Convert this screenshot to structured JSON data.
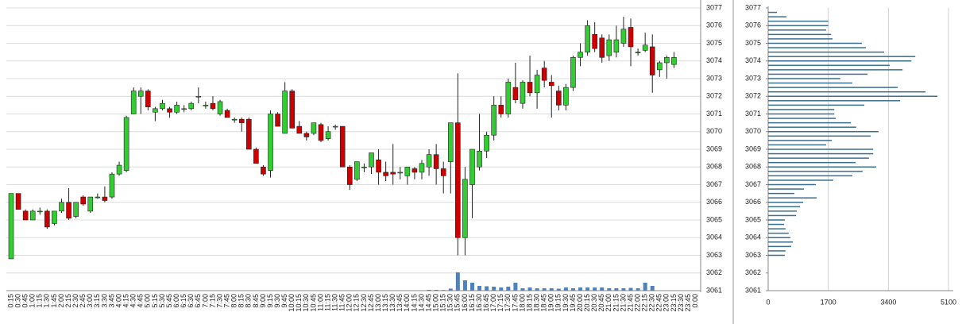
{
  "chart_data": [
    {
      "type": "candlestick",
      "categories": [
        "0:15",
        "0:30",
        "0:45",
        "1:00",
        "1:15",
        "1:30",
        "1:45",
        "2:00",
        "2:15",
        "2:30",
        "2:45",
        "3:00",
        "3:15",
        "3:30",
        "3:45",
        "4:00",
        "4:15",
        "4:30",
        "4:45",
        "5:00",
        "5:15",
        "5:30",
        "5:45",
        "6:00",
        "6:15",
        "6:30",
        "6:45",
        "7:00",
        "7:15",
        "7:30",
        "7:45",
        "8:00",
        "8:15",
        "8:30",
        "8:45",
        "9:00",
        "9:15",
        "9:30",
        "9:45",
        "10:00",
        "10:15",
        "10:30",
        "10:45",
        "11:00",
        "11:15",
        "11:30",
        "11:45",
        "12:00",
        "12:15",
        "12:30",
        "12:45",
        "13:00",
        "13:15",
        "13:30",
        "13:45",
        "14:00",
        "14:15",
        "14:30",
        "14:45",
        "15:00",
        "15:15",
        "15:30",
        "15:45",
        "16:00",
        "16:15",
        "16:30",
        "16:45",
        "17:00",
        "17:15",
        "17:30",
        "17:45",
        "18:00",
        "18:15",
        "18:30",
        "18:45",
        "19:00",
        "19:15",
        "19:30",
        "19:45",
        "20:00",
        "20:15",
        "20:30",
        "20:45",
        "21:00",
        "21:15",
        "21:30",
        "21:45",
        "22:00",
        "22:15",
        "22:30",
        "22:45",
        "23:00",
        "23:15",
        "23:30",
        "23:45",
        "0:00"
      ],
      "open": [
        3062.8,
        3066.5,
        3065.5,
        3065.0,
        3065.5,
        3065.5,
        3064.8,
        3065.5,
        3066.0,
        3065.2,
        3066.3,
        3065.5,
        3066.3,
        3066.3,
        3066.3,
        3067.6,
        3067.8,
        3071.0,
        3072.0,
        3072.3,
        3071.1,
        3071.3,
        3071.3,
        3071.1,
        3071.3,
        3071.3,
        3072.0,
        3071.5,
        3071.6,
        3071.0,
        3071.2,
        3070.7,
        3070.7,
        3070.7,
        3069.0,
        3068.0,
        3067.8,
        3071.0,
        3069.9,
        3072.3,
        3070.3,
        3069.9,
        3069.9,
        3070.4,
        3069.6,
        3070.3,
        3070.3,
        3068.0,
        3067.3,
        3068.0,
        3068.0,
        3068.4,
        3067.7,
        3067.7,
        3067.7,
        3067.5,
        3067.9,
        3067.7,
        3068.0,
        3068.7,
        3067.9,
        3068.3,
        3070.5,
        3064.0,
        3067.0,
        3068.0,
        3068.9,
        3069.8,
        3071.5,
        3071.0,
        3072.5,
        3071.6,
        3072.8,
        3072.2,
        3073.6,
        3072.8,
        3072.3,
        3071.5,
        3072.5,
        3074.2,
        3074.5,
        3075.5,
        3075.3,
        3074.3,
        3074.5,
        3075.0,
        3075.9,
        3074.5,
        3074.6,
        3074.8,
        3073.5,
        3073.9,
        3073.8,
        null,
        null,
        null
      ],
      "high": [
        3066.5,
        3066.5,
        3065.6,
        3065.6,
        3065.7,
        3065.6,
        3065.5,
        3066.2,
        3066.8,
        3066.0,
        3066.4,
        3066.3,
        3066.5,
        3066.9,
        3067.7,
        3068.3,
        3070.9,
        3072.5,
        3072.5,
        3072.4,
        3071.4,
        3071.8,
        3071.4,
        3071.7,
        3071.5,
        3071.7,
        3072.5,
        3071.7,
        3072.0,
        3071.8,
        3071.3,
        3070.8,
        3070.8,
        3070.8,
        3069.1,
        3068.1,
        3071.2,
        3071.1,
        3072.8,
        3072.4,
        3070.6,
        3070.0,
        3070.5,
        3070.5,
        3070.3,
        3070.4,
        3070.3,
        3068.1,
        3068.3,
        3068.2,
        3068.8,
        3069.0,
        3068.3,
        3069.3,
        3068.0,
        3068.0,
        3068.0,
        3068.4,
        3069.0,
        3069.3,
        3068.3,
        3070.5,
        3073.3,
        3068.0,
        3069.0,
        3071.0,
        3070.0,
        3072.0,
        3072.0,
        3073.0,
        3073.9,
        3072.9,
        3074.3,
        3073.5,
        3074.0,
        3073.2,
        3072.6,
        3072.7,
        3074.3,
        3075.0,
        3076.3,
        3076.2,
        3075.5,
        3075.5,
        3076.0,
        3076.5,
        3076.4,
        3074.7,
        3075.6,
        3075.5,
        3074.0,
        3074.3,
        3074.5,
        null,
        null,
        null
      ],
      "low": [
        3062.8,
        3065.6,
        3065.0,
        3065.0,
        3065.3,
        3064.5,
        3064.7,
        3065.4,
        3065.0,
        3065.1,
        3065.8,
        3065.4,
        3066.2,
        3066.0,
        3066.2,
        3067.5,
        3067.7,
        3071.0,
        3071.0,
        3071.2,
        3070.6,
        3071.2,
        3070.8,
        3071.0,
        3071.1,
        3071.2,
        3071.6,
        3071.3,
        3071.2,
        3070.9,
        3070.8,
        3070.5,
        3070.0,
        3069.0,
        3068.2,
        3067.5,
        3067.4,
        3070.3,
        3069.9,
        3070.2,
        3069.9,
        3069.5,
        3069.8,
        3069.4,
        3069.5,
        3070.1,
        3068.0,
        3066.7,
        3067.2,
        3067.7,
        3067.6,
        3067.0,
        3067.2,
        3067.0,
        3067.3,
        3067.0,
        3067.3,
        3067.3,
        3067.5,
        3067.0,
        3066.5,
        3066.5,
        3063.0,
        3063.0,
        3065.1,
        3067.8,
        3068.5,
        3069.5,
        3070.8,
        3070.8,
        3071.6,
        3071.3,
        3072.0,
        3071.3,
        3072.5,
        3070.8,
        3071.2,
        3071.2,
        3072.3,
        3073.7,
        3074.3,
        3074.5,
        3073.9,
        3074.0,
        3074.2,
        3074.8,
        3073.7,
        3074.3,
        3074.5,
        3072.2,
        3073.1,
        3073.0,
        3073.6,
        null,
        null,
        null
      ],
      "close": [
        3066.5,
        3065.6,
        3065.0,
        3065.5,
        3065.5,
        3064.6,
        3065.5,
        3066.0,
        3065.1,
        3066.0,
        3065.9,
        3066.3,
        3066.3,
        3066.1,
        3067.6,
        3068.1,
        3070.8,
        3072.3,
        3072.3,
        3071.4,
        3071.3,
        3071.6,
        3071.1,
        3071.5,
        3071.3,
        3071.6,
        3072.0,
        3071.5,
        3071.3,
        3071.7,
        3070.8,
        3070.7,
        3070.5,
        3069.0,
        3068.2,
        3067.6,
        3071.0,
        3070.3,
        3072.3,
        3070.2,
        3069.9,
        3069.7,
        3070.5,
        3069.5,
        3070.0,
        3070.3,
        3068.0,
        3067.0,
        3068.3,
        3068.0,
        3068.8,
        3067.7,
        3067.5,
        3067.6,
        3067.7,
        3068.0,
        3067.7,
        3068.2,
        3068.7,
        3067.9,
        3067.5,
        3070.5,
        3064.0,
        3067.3,
        3069.0,
        3068.9,
        3069.8,
        3071.5,
        3071.0,
        3072.8,
        3071.8,
        3072.8,
        3072.2,
        3073.2,
        3072.9,
        3072.6,
        3071.5,
        3072.5,
        3074.2,
        3074.5,
        3076.0,
        3074.7,
        3074.2,
        3075.2,
        3075.2,
        3075.8,
        3074.8,
        3074.5,
        3074.9,
        3073.2,
        3073.9,
        3074.2,
        3074.2,
        null,
        null,
        null
      ],
      "up_color": "#33cc33",
      "down_color": "#cc0000",
      "volume": {
        "color": "#4f81bd",
        "values": [
          null,
          null,
          null,
          null,
          null,
          null,
          null,
          null,
          null,
          null,
          null,
          null,
          null,
          null,
          null,
          null,
          null,
          null,
          null,
          null,
          null,
          null,
          null,
          null,
          null,
          null,
          null,
          null,
          null,
          null,
          null,
          null,
          null,
          null,
          null,
          null,
          null,
          null,
          null,
          null,
          null,
          null,
          null,
          null,
          null,
          null,
          null,
          null,
          null,
          null,
          null,
          null,
          null,
          null,
          null,
          null,
          null,
          50,
          100,
          100,
          80,
          250,
          2300,
          1300,
          1000,
          600,
          550,
          500,
          400,
          500,
          1000,
          300,
          400,
          300,
          300,
          300,
          250,
          400,
          300,
          400,
          400,
          400,
          400,
          300,
          300,
          300,
          350,
          300,
          1000,
          600,
          null,
          null,
          null,
          null,
          null,
          null
        ]
      },
      "ylim": [
        3061,
        3077
      ],
      "yticks": [
        3061,
        3062,
        3063,
        3064,
        3065,
        3066,
        3067,
        3068,
        3069,
        3070,
        3071,
        3072,
        3073,
        3074,
        3075,
        3076,
        3077
      ],
      "grid": true
    },
    {
      "type": "profile",
      "y": [
        3076.75,
        3076.5,
        3076.25,
        3076,
        3075.75,
        3075.5,
        3075.25,
        3075,
        3074.75,
        3074.5,
        3074.25,
        3074,
        3073.75,
        3073.5,
        3073.25,
        3073,
        3072.75,
        3072.5,
        3072.25,
        3072,
        3071.75,
        3071.5,
        3071.25,
        3071,
        3070.75,
        3070.5,
        3070.25,
        3070,
        3069.75,
        3069.5,
        3069.25,
        3069,
        3068.75,
        3068.5,
        3068.25,
        3068,
        3067.75,
        3067.5,
        3067.25,
        3067,
        3066.75,
        3066.5,
        3066.25,
        3066,
        3065.75,
        3065.5,
        3065.25,
        3065,
        3064.75,
        3064.5,
        3064.25,
        3064,
        3063.75,
        3063.5,
        3063.25,
        3063
      ],
      "values": [
        250,
        520,
        1700,
        1700,
        1640,
        1780,
        1820,
        2650,
        2760,
        3280,
        4160,
        4050,
        3440,
        3800,
        2810,
        2040,
        2380,
        3660,
        4450,
        4790,
        3730,
        2720,
        1870,
        1870,
        1910,
        2340,
        2490,
        3120,
        2900,
        1800,
        1640,
        2970,
        2970,
        2850,
        2470,
        3060,
        2670,
        2380,
        1840,
        1350,
        1010,
        740,
        1370,
        990,
        900,
        810,
        790,
        470,
        450,
        490,
        580,
        630,
        700,
        650,
        490,
        470
      ],
      "color": "#3a6f90",
      "xlim": [
        0,
        5100
      ],
      "xticks": [
        0,
        1700,
        3400,
        5100
      ],
      "ylim": [
        3061,
        3077
      ],
      "yticks": [
        3061,
        3062,
        3063,
        3064,
        3065,
        3066,
        3067,
        3068,
        3069,
        3070,
        3071,
        3072,
        3073,
        3074,
        3075,
        3076,
        3077
      ],
      "grid": true
    }
  ]
}
